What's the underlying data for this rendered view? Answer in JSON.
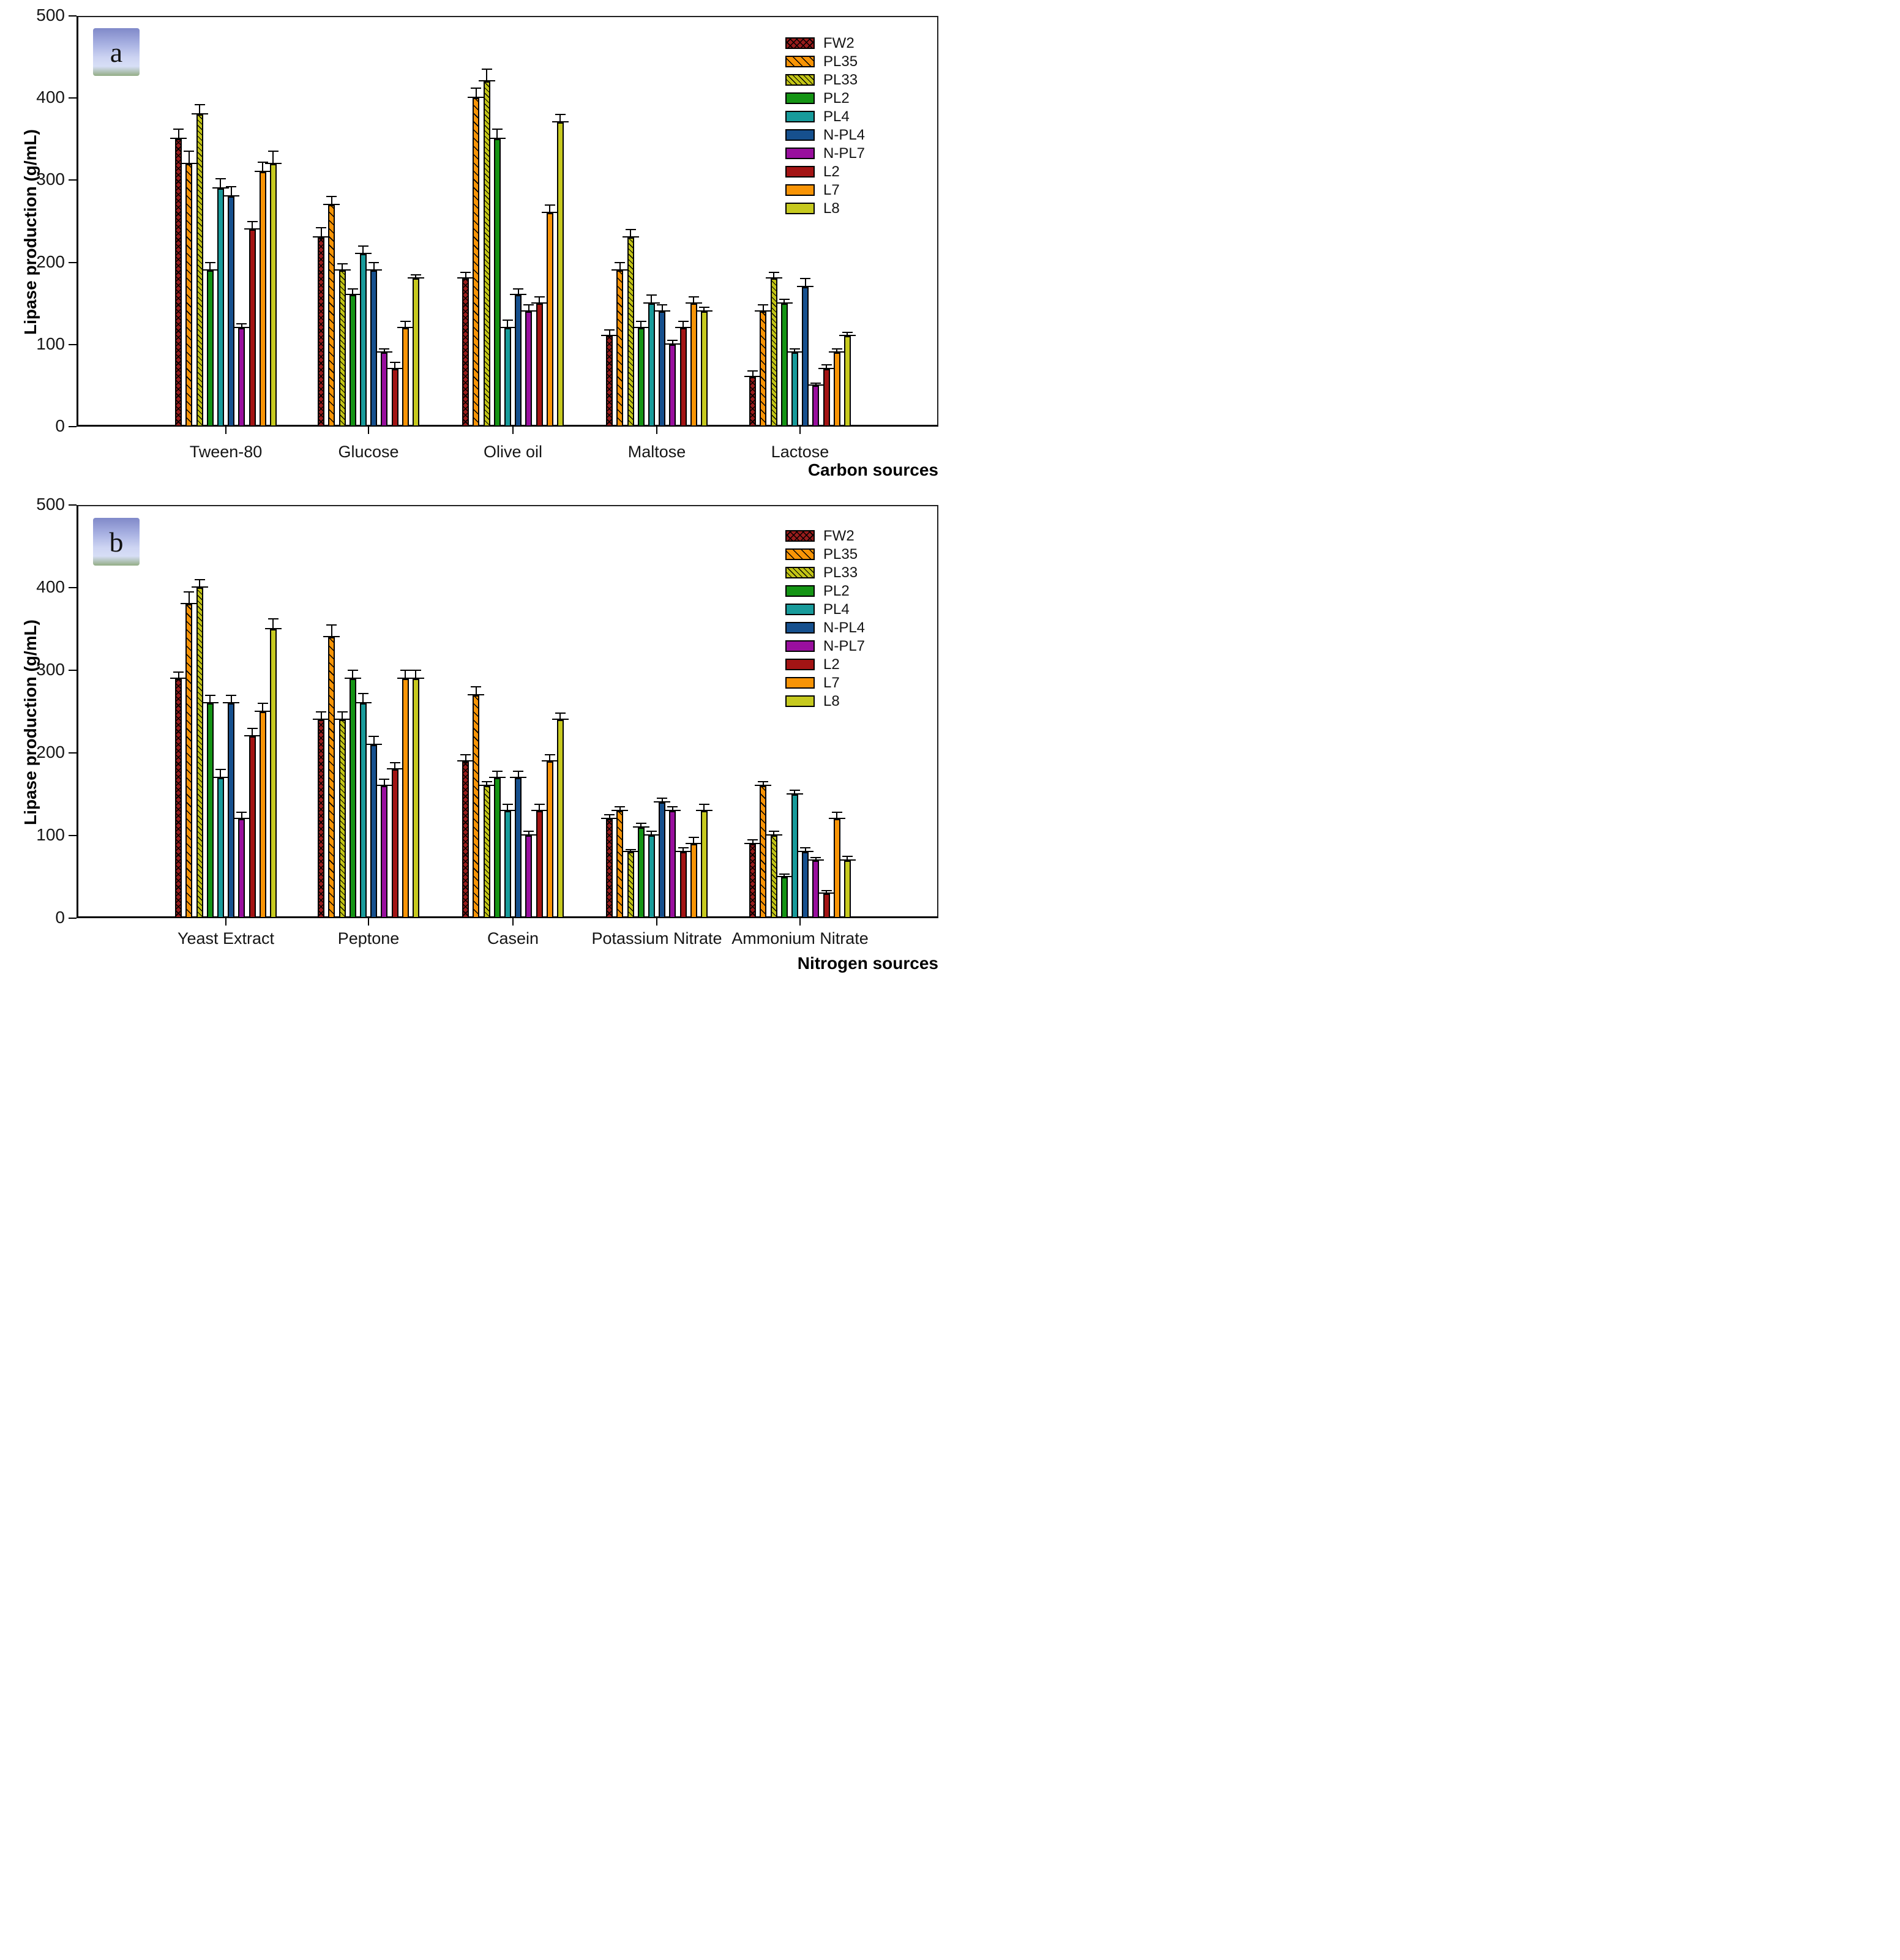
{
  "figure": {
    "panels": [
      {
        "label": "a"
      },
      {
        "label": "b"
      }
    ],
    "colors": {
      "FW2": "#981c1c",
      "PL35": "#f89406",
      "PL33": "#c2c416",
      "PL2": "#149414",
      "PL4": "#189b9b",
      "N-PL4": "#16508e",
      "N-PL7": "#990f9e",
      "L2": "#a31414",
      "L7": "#f89406",
      "L8": "#c6c91f"
    }
  },
  "chart_data": [
    {
      "type": "bar",
      "panel": "a",
      "ylabel": "Lipase production (g/mL)",
      "xlabel": "Carbon sources",
      "ylim": [
        0,
        500
      ],
      "yticks": [
        0,
        100,
        200,
        300,
        400,
        500
      ],
      "grid": false,
      "legend_position": "top-right-inside",
      "error_bars": "upper-with-caps",
      "categories": [
        "Tween-80",
        "Glucose",
        "Olive oil",
        "Maltose",
        "Lactose"
      ],
      "series": [
        {
          "name": "FW2",
          "pattern": "crosshatch",
          "values": [
            350,
            230,
            180,
            110,
            60
          ],
          "errors": [
            12,
            12,
            8,
            8,
            8
          ]
        },
        {
          "name": "PL35",
          "pattern": "diagonal",
          "values": [
            320,
            270,
            400,
            190,
            140
          ],
          "errors": [
            15,
            10,
            12,
            10,
            8
          ]
        },
        {
          "name": "PL33",
          "pattern": "diagonal",
          "values": [
            380,
            190,
            420,
            230,
            180
          ],
          "errors": [
            12,
            8,
            15,
            10,
            8
          ]
        },
        {
          "name": "PL2",
          "pattern": "solid",
          "values": [
            190,
            160,
            350,
            120,
            150
          ],
          "errors": [
            10,
            8,
            12,
            8,
            5
          ]
        },
        {
          "name": "PL4",
          "pattern": "solid",
          "values": [
            290,
            210,
            120,
            150,
            90
          ],
          "errors": [
            12,
            10,
            10,
            10,
            5
          ]
        },
        {
          "name": "N-PL4",
          "pattern": "solid",
          "values": [
            280,
            190,
            160,
            140,
            170
          ],
          "errors": [
            12,
            10,
            8,
            8,
            10
          ]
        },
        {
          "name": "N-PL7",
          "pattern": "solid",
          "values": [
            120,
            90,
            140,
            100,
            50
          ],
          "errors": [
            5,
            5,
            8,
            5,
            3
          ]
        },
        {
          "name": "L2",
          "pattern": "solid",
          "values": [
            240,
            70,
            150,
            120,
            70
          ],
          "errors": [
            10,
            8,
            8,
            8,
            5
          ]
        },
        {
          "name": "L7",
          "pattern": "solid",
          "values": [
            310,
            120,
            260,
            150,
            90
          ],
          "errors": [
            12,
            8,
            10,
            8,
            5
          ]
        },
        {
          "name": "L8",
          "pattern": "solid",
          "values": [
            320,
            180,
            370,
            140,
            110
          ],
          "errors": [
            15,
            5,
            10,
            5,
            5
          ]
        }
      ]
    },
    {
      "type": "bar",
      "panel": "b",
      "ylabel": "Lipase production (g/mL)",
      "xlabel": "Nitrogen sources",
      "ylim": [
        0,
        500
      ],
      "yticks": [
        0,
        100,
        200,
        300,
        400,
        500
      ],
      "grid": false,
      "legend_position": "top-right-inside",
      "error_bars": "upper-with-caps",
      "categories": [
        "Yeast Extract",
        "Peptone",
        "Casein",
        "Potassium Nitrate",
        "Ammonium Nitrate"
      ],
      "series": [
        {
          "name": "FW2",
          "pattern": "crosshatch",
          "values": [
            290,
            240,
            190,
            120,
            90
          ],
          "errors": [
            8,
            10,
            8,
            5,
            5
          ]
        },
        {
          "name": "PL35",
          "pattern": "diagonal",
          "values": [
            380,
            340,
            270,
            130,
            160
          ],
          "errors": [
            15,
            15,
            10,
            5,
            5
          ]
        },
        {
          "name": "PL33",
          "pattern": "diagonal",
          "values": [
            400,
            240,
            160,
            80,
            100
          ],
          "errors": [
            10,
            10,
            5,
            3,
            5
          ]
        },
        {
          "name": "PL2",
          "pattern": "solid",
          "values": [
            260,
            290,
            170,
            110,
            50
          ],
          "errors": [
            10,
            10,
            8,
            5,
            3
          ]
        },
        {
          "name": "PL4",
          "pattern": "solid",
          "values": [
            170,
            260,
            130,
            100,
            150
          ],
          "errors": [
            10,
            12,
            8,
            5,
            5
          ]
        },
        {
          "name": "N-PL4",
          "pattern": "solid",
          "values": [
            260,
            210,
            170,
            140,
            80
          ],
          "errors": [
            10,
            10,
            8,
            5,
            5
          ]
        },
        {
          "name": "N-PL7",
          "pattern": "solid",
          "values": [
            120,
            160,
            100,
            130,
            70
          ],
          "errors": [
            8,
            8,
            5,
            5,
            3
          ]
        },
        {
          "name": "L2",
          "pattern": "solid",
          "values": [
            220,
            180,
            130,
            80,
            30
          ],
          "errors": [
            10,
            8,
            8,
            5,
            3
          ]
        },
        {
          "name": "L7",
          "pattern": "solid",
          "values": [
            250,
            290,
            190,
            90,
            120
          ],
          "errors": [
            10,
            10,
            8,
            8,
            8
          ]
        },
        {
          "name": "L8",
          "pattern": "solid",
          "values": [
            350,
            290,
            240,
            130,
            70
          ],
          "errors": [
            12,
            10,
            8,
            8,
            5
          ]
        }
      ]
    }
  ]
}
